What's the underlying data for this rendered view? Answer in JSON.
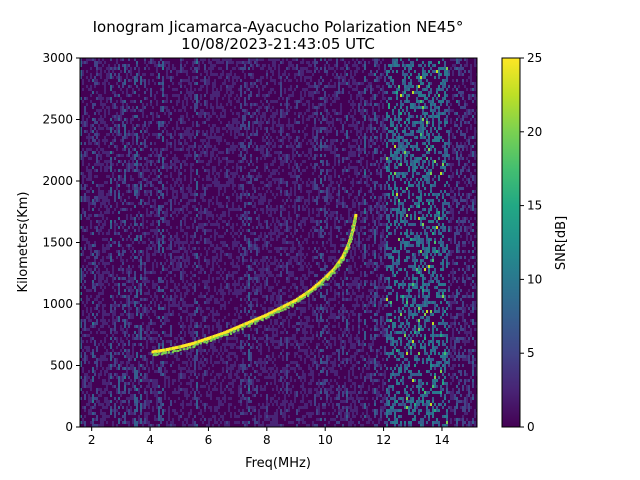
{
  "chart_data": {
    "type": "heatmap",
    "title_line1": "Ionogram Jicamarca-Ayacucho Polarization NE45°",
    "title_line2": "10/08/2023-21:43:05 UTC",
    "xlabel": "Freq(MHz)",
    "ylabel": "Kilometers(Km)",
    "xlim": [
      1.6,
      15.2
    ],
    "ylim": [
      0,
      3000
    ],
    "x_ticks": [
      2,
      4,
      6,
      8,
      10,
      12,
      14
    ],
    "y_ticks": [
      0,
      500,
      1000,
      1500,
      2000,
      2500,
      3000
    ],
    "colorbar": {
      "label": "SNR[dB]",
      "range": [
        0,
        25
      ],
      "ticks": [
        0,
        5,
        10,
        15,
        20,
        25
      ],
      "colormap": "viridis"
    },
    "trace": {
      "description": "ionospheric echo trace (virtual height vs frequency)",
      "snr": 25,
      "points": [
        [
          4.1,
          610
        ],
        [
          4.5,
          625
        ],
        [
          5.0,
          650
        ],
        [
          5.5,
          680
        ],
        [
          6.0,
          720
        ],
        [
          6.5,
          760
        ],
        [
          7.0,
          810
        ],
        [
          7.5,
          860
        ],
        [
          8.0,
          910
        ],
        [
          8.5,
          970
        ],
        [
          9.0,
          1030
        ],
        [
          9.5,
          1110
        ],
        [
          10.0,
          1210
        ],
        [
          10.3,
          1280
        ],
        [
          10.6,
          1380
        ],
        [
          10.8,
          1480
        ],
        [
          10.95,
          1600
        ],
        [
          11.05,
          1720
        ]
      ]
    },
    "noise_band_frequencies": [
      12.3,
      12.6,
      13.0,
      13.4,
      13.6,
      13.9
    ]
  }
}
